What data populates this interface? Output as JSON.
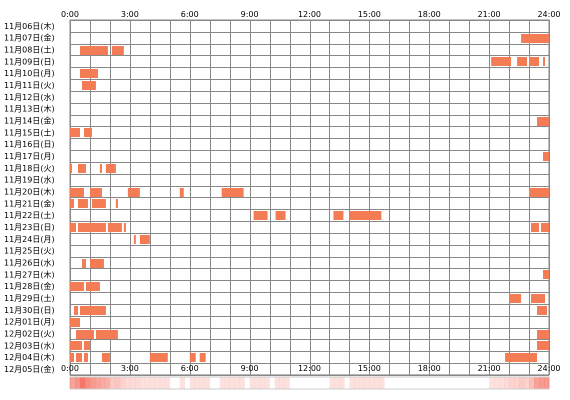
{
  "chart_data": {
    "type": "heatmap",
    "x_unit": "hours",
    "xlim": [
      0,
      24
    ],
    "x_ticks": [
      "0:00",
      "3:00",
      "6:00",
      "9:00",
      "12:00",
      "15:00",
      "18:00",
      "21:00",
      "24:00"
    ],
    "grid_minor_hours": 1,
    "bar_color": "#f47c55",
    "summary_strip_color": "#f46a5a",
    "rows": [
      {
        "label": "11月06日(木)",
        "segments": []
      },
      {
        "label": "11月07日(金)",
        "segments": [
          [
            22.6,
            24.0
          ]
        ]
      },
      {
        "label": "11月08日(土)",
        "segments": [
          [
            0.5,
            1.9
          ],
          [
            2.1,
            2.7
          ]
        ]
      },
      {
        "label": "11月09日(日)",
        "segments": [
          [
            21.1,
            22.1
          ],
          [
            22.4,
            22.9
          ],
          [
            23.0,
            23.5
          ],
          [
            23.7,
            23.8
          ]
        ]
      },
      {
        "label": "11月10日(月)",
        "segments": [
          [
            0.5,
            1.4
          ]
        ]
      },
      {
        "label": "11月11日(火)",
        "segments": [
          [
            0.6,
            1.3
          ]
        ]
      },
      {
        "label": "11月12日(水)",
        "segments": []
      },
      {
        "label": "11月13日(木)",
        "segments": []
      },
      {
        "label": "11月14日(金)",
        "segments": [
          [
            23.4,
            24.0
          ]
        ]
      },
      {
        "label": "11月15日(土)",
        "segments": [
          [
            0.0,
            0.5
          ],
          [
            0.7,
            1.1
          ]
        ]
      },
      {
        "label": "11月16日(日)",
        "segments": []
      },
      {
        "label": "11月17日(月)",
        "segments": [
          [
            23.7,
            24.0
          ]
        ]
      },
      {
        "label": "11月18日(火)",
        "segments": [
          [
            0.0,
            0.1
          ],
          [
            0.4,
            0.8
          ],
          [
            1.5,
            1.6
          ],
          [
            1.8,
            2.3
          ]
        ]
      },
      {
        "label": "11月19日(水)",
        "segments": []
      },
      {
        "label": "11月20日(木)",
        "segments": [
          [
            0.0,
            0.7
          ],
          [
            1.0,
            1.6
          ],
          [
            2.9,
            3.5
          ],
          [
            5.5,
            5.7
          ],
          [
            7.6,
            8.7
          ],
          [
            23.0,
            24.0
          ]
        ]
      },
      {
        "label": "11月21日(金)",
        "segments": [
          [
            0.0,
            0.2
          ],
          [
            0.4,
            0.9
          ],
          [
            1.1,
            1.8
          ],
          [
            2.3,
            2.4
          ]
        ]
      },
      {
        "label": "11月22日(土)",
        "segments": [
          [
            9.2,
            9.9
          ],
          [
            10.3,
            10.8
          ],
          [
            13.2,
            13.7
          ],
          [
            14.0,
            15.6
          ]
        ]
      },
      {
        "label": "11月23日(日)",
        "segments": [
          [
            0.0,
            0.3
          ],
          [
            0.4,
            1.8
          ],
          [
            1.9,
            2.6
          ],
          [
            2.7,
            2.8
          ],
          [
            23.1,
            23.5
          ],
          [
            23.6,
            24.0
          ]
        ]
      },
      {
        "label": "11月24日(月)",
        "segments": [
          [
            3.2,
            3.3
          ],
          [
            3.5,
            4.0
          ]
        ]
      },
      {
        "label": "11月25日(火)",
        "segments": []
      },
      {
        "label": "11月26日(水)",
        "segments": [
          [
            0.6,
            0.8
          ],
          [
            1.0,
            1.7
          ]
        ]
      },
      {
        "label": "11月27日(木)",
        "segments": [
          [
            23.7,
            24.0
          ]
        ]
      },
      {
        "label": "11月28日(金)",
        "segments": [
          [
            0.0,
            0.7
          ],
          [
            0.8,
            1.5
          ]
        ]
      },
      {
        "label": "11月29日(土)",
        "segments": [
          [
            22.0,
            22.6
          ],
          [
            23.1,
            23.8
          ]
        ]
      },
      {
        "label": "11月30日(日)",
        "segments": [
          [
            0.2,
            0.4
          ],
          [
            0.5,
            1.8
          ],
          [
            23.4,
            23.9
          ]
        ]
      },
      {
        "label": "12月01日(月)",
        "segments": [
          [
            0.0,
            0.5
          ]
        ]
      },
      {
        "label": "12月02日(火)",
        "segments": [
          [
            0.3,
            1.2
          ],
          [
            1.3,
            2.4
          ],
          [
            23.4,
            24.0
          ]
        ]
      },
      {
        "label": "12月03日(水)",
        "segments": [
          [
            0.0,
            0.6
          ],
          [
            0.7,
            1.0
          ],
          [
            23.4,
            24.0
          ]
        ]
      },
      {
        "label": "12月04日(木)",
        "segments": [
          [
            0.0,
            0.2
          ],
          [
            0.3,
            0.6
          ],
          [
            0.7,
            0.9
          ],
          [
            1.6,
            2.0
          ],
          [
            4.0,
            4.9
          ],
          [
            6.0,
            6.3
          ],
          [
            6.5,
            6.8
          ],
          [
            21.8,
            23.4
          ]
        ]
      },
      {
        "label": "12月05日(金)",
        "segments": []
      }
    ]
  }
}
